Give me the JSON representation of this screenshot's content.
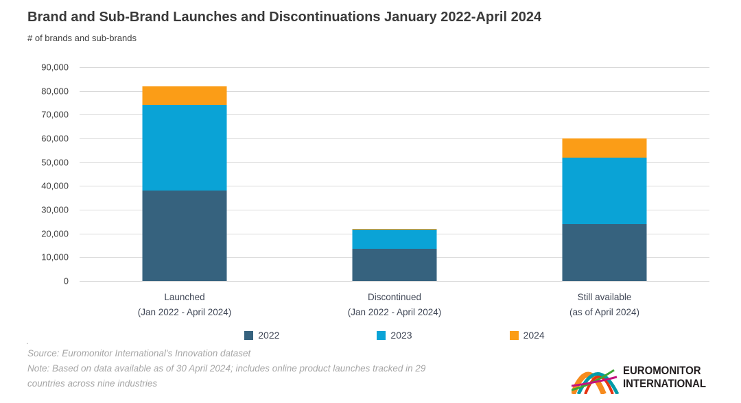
{
  "title": "Brand and Sub-Brand Launches and Discontinuations January 2022-April 2024",
  "subtitle": "# of brands and sub-brands",
  "chart_data": {
    "type": "bar",
    "stacked": true,
    "grid": true,
    "legend_position": "bottom",
    "ylim": [
      0,
      90000
    ],
    "ytick_step": 10000,
    "yticks": [
      "90,000",
      "80,000",
      "70,000",
      "60,000",
      "50,000",
      "40,000",
      "30,000",
      "20,000",
      "10,000",
      "0"
    ],
    "categories": [
      {
        "line1": "Launched",
        "line2": "(Jan 2022 - April 2024)"
      },
      {
        "line1": "Discontinued",
        "line2": "(Jan 2022 - April 2024)"
      },
      {
        "line1": "Still available",
        "line2": "(as of April 2024)"
      }
    ],
    "series": [
      {
        "name": "2022",
        "color": "#36627e",
        "values": [
          38000,
          13500,
          24000
        ]
      },
      {
        "name": "2023",
        "color": "#0aa3d6",
        "values": [
          36000,
          8000,
          28000
        ]
      },
      {
        "name": "2024",
        "color": "#fb9d17",
        "values": [
          8000,
          500,
          8000
        ]
      }
    ],
    "stack_totals": [
      82000,
      22000,
      60000
    ]
  },
  "footer": {
    "dot": ".",
    "source": "Source: Euromonitor International's Innovation dataset",
    "note_line1": "Note: Based on data available as of 30 April 2024; includes online product launches tracked in 29",
    "note_line2": "countries across nine industries"
  },
  "logo": {
    "line1": "EUROMONITOR",
    "line2": "INTERNATIONAL"
  },
  "colors": {
    "gridline": "#d9d9d9",
    "title_text": "#3a3a3a",
    "axis_text": "#404040",
    "label_text": "#404756",
    "note_text": "#a6a6a6",
    "logo_text": "#231f20"
  }
}
